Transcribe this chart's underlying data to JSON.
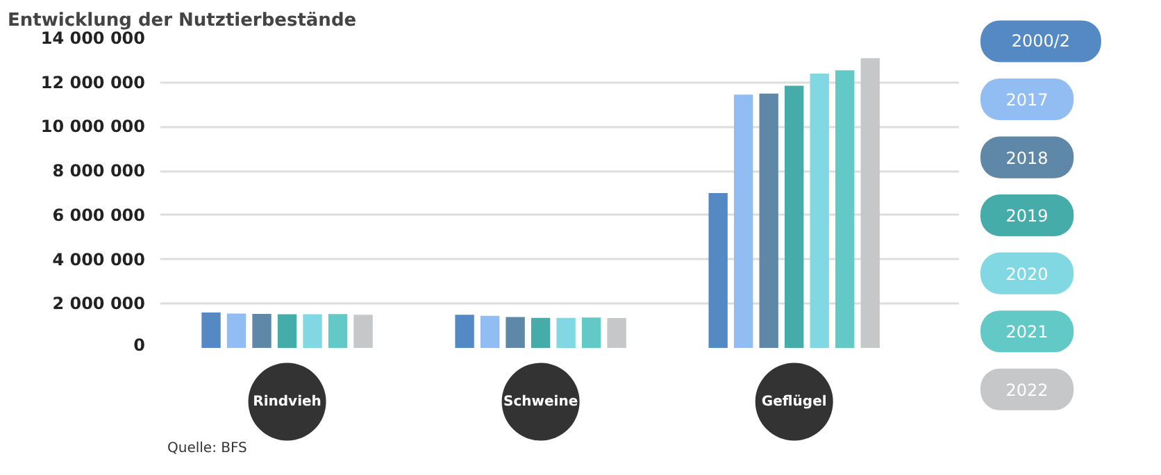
{
  "chart_data": {
    "type": "bar",
    "title": "Entwicklung der Nutztierbestände",
    "categories": [
      "Rindvieh",
      "Schweine",
      "Geflügel"
    ],
    "series": [
      {
        "name": "2000/2",
        "color": "#5589c4",
        "values": [
          1600000,
          1500000,
          7000000
        ]
      },
      {
        "name": "2017",
        "color": "#92bdf2",
        "values": [
          1550000,
          1450000,
          11450000
        ]
      },
      {
        "name": "2018",
        "color": "#5f87a8",
        "values": [
          1540000,
          1400000,
          11500000
        ]
      },
      {
        "name": "2019",
        "color": "#46aca9",
        "values": [
          1520000,
          1360000,
          11850000
        ]
      },
      {
        "name": "2020",
        "color": "#81d8e2",
        "values": [
          1520000,
          1360000,
          12400000
        ]
      },
      {
        "name": "2021",
        "color": "#62c9c6",
        "values": [
          1530000,
          1370000,
          12550000
        ]
      },
      {
        "name": "2022",
        "color": "#c6c7c9",
        "values": [
          1500000,
          1350000,
          13100000
        ]
      }
    ],
    "ylim": [
      0,
      14000000
    ],
    "yticks": [
      {
        "value": 0,
        "label": "0"
      },
      {
        "value": 2000000,
        "label": "2 000 000"
      },
      {
        "value": 4000000,
        "label": "4 000 000"
      },
      {
        "value": 6000000,
        "label": "6 000 000"
      },
      {
        "value": 8000000,
        "label": "8 000 000"
      },
      {
        "value": 10000000,
        "label": "10 000 000"
      },
      {
        "value": 12000000,
        "label": "12 000 000"
      },
      {
        "value": 14000000,
        "label": "14 000 000"
      }
    ],
    "grid": "y",
    "legend": "right",
    "annotations": [
      "Quelle: BFS"
    ]
  }
}
